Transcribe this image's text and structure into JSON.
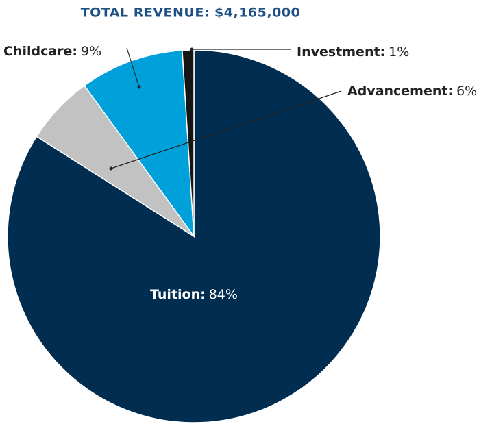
{
  "chart_data": {
    "type": "pie",
    "title": "TOTAL REVENUE: $4,165,000",
    "categories": [
      "Tuition:",
      "Advancement:",
      "Childcare:",
      "Investment:"
    ],
    "values": [
      84,
      6,
      9,
      1
    ],
    "value_labels": [
      "84%",
      "6%",
      "9%",
      "1%"
    ],
    "colors": [
      "#002d50",
      "#c2c2c2",
      "#00a1db",
      "#151515"
    ]
  }
}
